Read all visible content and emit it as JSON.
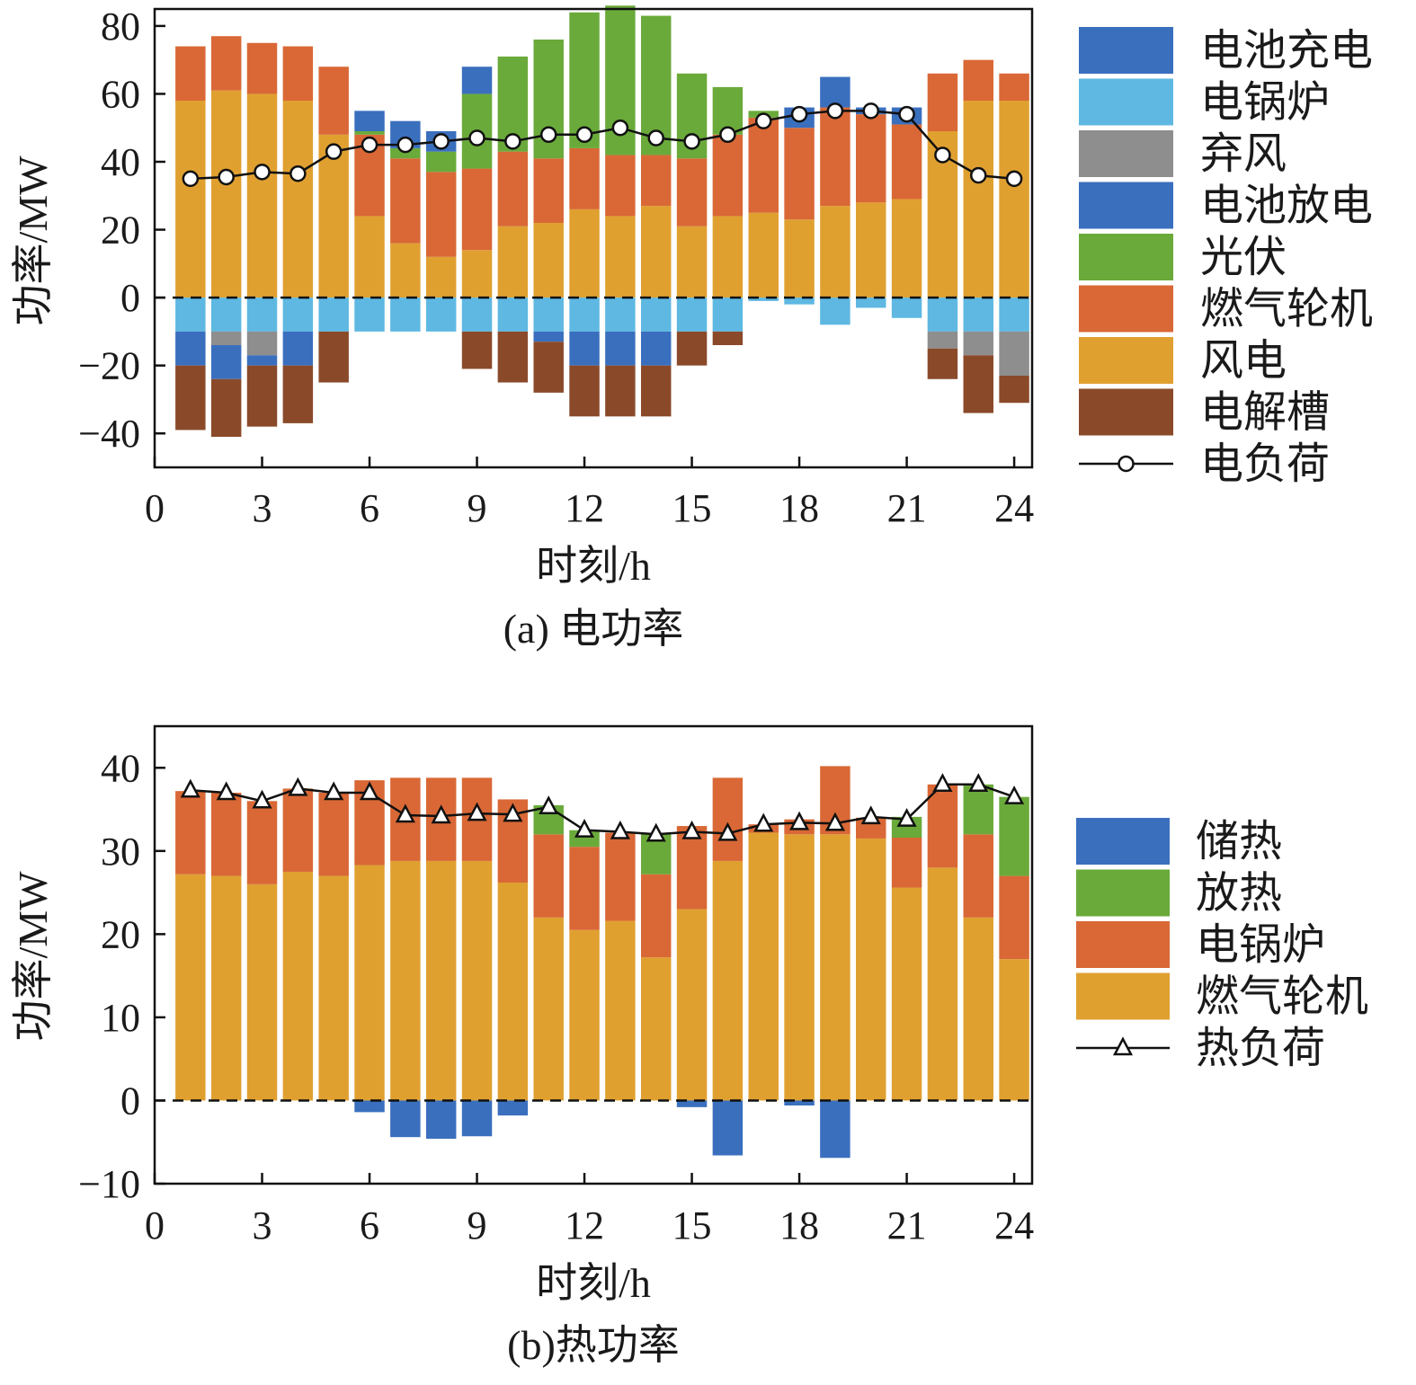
{
  "chart_data": [
    {
      "type": "bar",
      "caption": "(a) 电功率",
      "xlabel": "时刻/h",
      "ylabel": "功率/MW",
      "xlim": [
        0,
        24.5
      ],
      "ylim": [
        -50,
        85
      ],
      "xticks": [
        0,
        3,
        6,
        9,
        12,
        15,
        18,
        21,
        24
      ],
      "yticks": [
        -40,
        -20,
        0,
        20,
        40,
        60,
        80
      ],
      "x": [
        1,
        2,
        3,
        4,
        5,
        6,
        7,
        8,
        9,
        10,
        11,
        12,
        13,
        14,
        15,
        16,
        17,
        18,
        19,
        20,
        21,
        22,
        23,
        24
      ],
      "series": [
        {
          "name": "风电",
          "color": "#E0A030",
          "values": [
            58,
            61,
            60,
            58,
            48,
            24,
            16,
            12,
            14,
            21,
            22,
            26,
            24,
            27,
            21,
            24,
            25,
            23,
            27,
            28,
            29,
            49,
            58,
            58
          ]
        },
        {
          "name": "燃气轮机",
          "color": "#D96836",
          "values": [
            16,
            16,
            15,
            16,
            20,
            24,
            25,
            25,
            24,
            22,
            19,
            18,
            18,
            15,
            20,
            24,
            28,
            27,
            29,
            26,
            22,
            17,
            12,
            8
          ]
        },
        {
          "name": "光伏",
          "color": "#6AAA3A",
          "values": [
            0,
            0,
            0,
            0,
            0,
            1,
            3,
            6,
            22,
            28,
            35,
            40,
            44,
            41,
            25,
            14,
            2,
            0,
            0,
            0,
            0,
            0,
            0,
            0
          ]
        },
        {
          "name": "电池放电",
          "color": "#3A6FBE",
          "values": [
            0,
            0,
            0,
            0,
            0,
            6,
            8,
            6,
            8,
            0,
            0,
            0,
            0,
            0,
            0,
            0,
            0,
            6,
            9,
            2,
            5,
            0,
            0,
            0
          ]
        },
        {
          "name": "电锅炉",
          "color": "#5EB8E2",
          "values": [
            -10,
            -10,
            -10,
            -10,
            -10,
            -10,
            -10,
            -10,
            -10,
            -10,
            -10,
            -10,
            -10,
            -10,
            -10,
            -10,
            -1,
            -2,
            -8,
            -3,
            -6,
            -10,
            -10,
            -10
          ]
        },
        {
          "name": "弃风",
          "color": "#8E8E8E",
          "values": [
            0,
            -4,
            -7,
            0,
            0,
            0,
            0,
            0,
            0,
            0,
            0,
            0,
            0,
            0,
            0,
            0,
            0,
            0,
            0,
            0,
            0,
            -5,
            -7,
            -13
          ]
        },
        {
          "name": "电池充电",
          "color": "#3A6FBE",
          "values": [
            -10,
            -10,
            -3,
            -10,
            0,
            0,
            0,
            0,
            0,
            0,
            -3,
            -10,
            -10,
            -10,
            0,
            0,
            0,
            0,
            0,
            0,
            0,
            0,
            0,
            0
          ]
        },
        {
          "name": "电解槽",
          "color": "#8A4A2A",
          "values": [
            -19,
            -17,
            -18,
            -17,
            -15,
            0,
            0,
            0,
            -11,
            -15,
            -15,
            -15,
            -15,
            -15,
            -10,
            -4,
            0,
            0,
            0,
            0,
            0,
            -9,
            -17,
            -8
          ]
        }
      ],
      "line": {
        "name": "电负荷",
        "marker": "circle",
        "values": [
          35,
          35.5,
          37,
          36.5,
          43,
          45,
          45,
          46,
          47,
          46,
          48,
          48,
          50,
          47,
          46,
          48,
          52,
          54,
          55,
          55,
          54,
          42,
          36,
          35
        ]
      },
      "legend_order": [
        "电池充电",
        "电锅炉",
        "弃风",
        "电池放电",
        "光伏",
        "燃气轮机",
        "风电",
        "电解槽",
        "电负荷"
      ],
      "legend_placement": "right"
    },
    {
      "type": "bar",
      "caption": "(b)热功率",
      "xlabel": "时刻/h",
      "ylabel": "功率/MW",
      "xlim": [
        0,
        24.5
      ],
      "ylim": [
        -10,
        45
      ],
      "xticks": [
        0,
        3,
        6,
        9,
        12,
        15,
        18,
        21,
        24
      ],
      "yticks": [
        -10,
        0,
        10,
        20,
        30,
        40
      ],
      "x": [
        1,
        2,
        3,
        4,
        5,
        6,
        7,
        8,
        9,
        10,
        11,
        12,
        13,
        14,
        15,
        16,
        17,
        18,
        19,
        20,
        21,
        22,
        23,
        24
      ],
      "series": [
        {
          "name": "燃气轮机",
          "color": "#E0A030",
          "values": [
            27.2,
            27,
            26,
            27.5,
            27,
            28.3,
            28.8,
            28.8,
            28.8,
            26.2,
            22,
            20.5,
            21.6,
            17.2,
            23,
            28.8,
            32.2,
            32,
            32,
            31.5,
            25.6,
            28,
            22,
            17
          ]
        },
        {
          "name": "电锅炉",
          "color": "#D96836",
          "values": [
            10,
            10,
            10,
            10,
            10,
            10.2,
            10,
            10,
            10,
            10,
            10,
            10,
            10.6,
            10,
            10,
            10,
            1,
            1.8,
            8.2,
            2.5,
            6,
            10,
            10,
            10
          ]
        },
        {
          "name": "放热",
          "color": "#6AAA3A",
          "values": [
            0,
            0,
            0,
            0,
            0,
            0,
            0,
            0,
            0,
            0,
            3.5,
            2,
            0,
            5,
            0,
            0,
            0,
            0,
            0,
            0,
            2.5,
            0,
            6,
            9.5
          ]
        },
        {
          "name": "储热",
          "color": "#3A6FBE",
          "values": [
            0,
            0,
            0,
            0,
            0,
            -1.4,
            -4.4,
            -4.6,
            -4.3,
            -1.8,
            0,
            0,
            0,
            0,
            -0.8,
            -6.6,
            0,
            -0.6,
            -6.9,
            0,
            0,
            0,
            0,
            0
          ]
        }
      ],
      "line": {
        "name": "热负荷",
        "marker": "triangle",
        "values": [
          37.3,
          37,
          36,
          37.5,
          37,
          37,
          34.3,
          34.2,
          34.5,
          34.4,
          35.3,
          32.5,
          32.3,
          32,
          32.3,
          32.1,
          33.2,
          33.4,
          33.3,
          34.1,
          33.8,
          38,
          38,
          36.5
        ]
      },
      "legend_order": [
        "储热",
        "放热",
        "电锅炉",
        "燃气轮机",
        "热负荷"
      ],
      "legend_placement": "right"
    }
  ]
}
